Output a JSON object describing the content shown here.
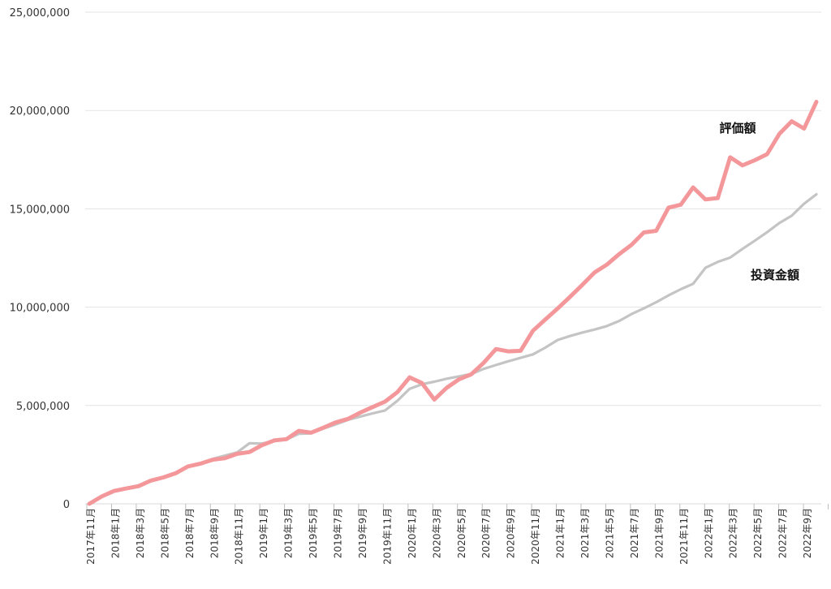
{
  "chart_data": {
    "type": "line",
    "title": "",
    "xlabel": "",
    "ylabel": "",
    "ylim": [
      0,
      25000000
    ],
    "yticks": [
      0,
      5000000,
      10000000,
      15000000,
      20000000,
      25000000
    ],
    "ytick_labels": [
      "0",
      "5,000,000",
      "10,000,000",
      "15,000,000",
      "20,000,000",
      "25,000,000"
    ],
    "grid": "horizontal",
    "legend": "none",
    "xtick_labels": [
      "2017年11月",
      "2018年1月",
      "2018年3月",
      "2018年5月",
      "2018年7月",
      "2018年9月",
      "2018年11月",
      "2019年1月",
      "2019年3月",
      "2019年5月",
      "2019年7月",
      "2019年9月",
      "2019年11月",
      "2020年1月",
      "2020年3月",
      "2020年5月",
      "2020年7月",
      "2020年9月",
      "2020年11月",
      "2021年1月",
      "2021年3月",
      "2021年5月",
      "2021年7月",
      "2021年9月",
      "2021年11月",
      "2022年1月",
      "2022年3月",
      "2022年5月",
      "2022年7月",
      "2022年9月"
    ],
    "x": [
      "2017年11月",
      "2017年12月",
      "2018年1月",
      "2018年2月",
      "2018年3月",
      "2018年4月",
      "2018年5月",
      "2018年6月",
      "2018年7月",
      "2018年8月",
      "2018年9月",
      "2018年10月",
      "2018年11月",
      "2018年12月",
      "2019年1月",
      "2019年2月",
      "2019年3月",
      "2019年4月",
      "2019年5月",
      "2019年6月",
      "2019年7月",
      "2019年8月",
      "2019年9月",
      "2019年10月",
      "2019年11月",
      "2019年12月",
      "2020年1月",
      "2020年2月",
      "2020年3月",
      "2020年4月",
      "2020年5月",
      "2020年6月",
      "2020年7月",
      "2020年8月",
      "2020年9月",
      "2020年10月",
      "2020年11月",
      "2020年12月",
      "2021年1月",
      "2021年2月",
      "2021年3月",
      "2021年4月",
      "2021年5月",
      "2021年6月",
      "2021年7月",
      "2021年8月",
      "2021年9月",
      "2021年10月",
      "2021年11月",
      "2021年12月",
      "2022年1月",
      "2022年2月",
      "2022年3月",
      "2022年4月",
      "2022年5月",
      "2022年6月",
      "2022年7月",
      "2022年8月",
      "2022年9月",
      "2022年10月"
    ],
    "series": [
      {
        "name": "評価額",
        "color": "#f4979a",
        "values": [
          0,
          370000,
          650000,
          780000,
          900000,
          1180000,
          1340000,
          1550000,
          1900000,
          2040000,
          2240000,
          2320000,
          2540000,
          2630000,
          2980000,
          3220000,
          3290000,
          3710000,
          3620000,
          3870000,
          4140000,
          4320000,
          4640000,
          4920000,
          5200000,
          5680000,
          6430000,
          6140000,
          5300000,
          5900000,
          6330000,
          6590000,
          7170000,
          7870000,
          7750000,
          7780000,
          8800000,
          9370000,
          9930000,
          10520000,
          11130000,
          11760000,
          12160000,
          12700000,
          13170000,
          13800000,
          13880000,
          15060000,
          15210000,
          16090000,
          15480000,
          15550000,
          17620000,
          17210000,
          17470000,
          17780000,
          18810000,
          19450000,
          19080000,
          20440000
        ]
      },
      {
        "name": "投資金額",
        "color": "#c4c4c4",
        "values": [
          0,
          360000,
          620000,
          780000,
          930000,
          1170000,
          1350000,
          1550000,
          1860000,
          2050000,
          2280000,
          2450000,
          2610000,
          3080000,
          3060000,
          3200000,
          3270000,
          3560000,
          3580000,
          3830000,
          4040000,
          4270000,
          4440000,
          4600000,
          4750000,
          5240000,
          5850000,
          6080000,
          6210000,
          6360000,
          6480000,
          6600000,
          6860000,
          7060000,
          7250000,
          7420000,
          7600000,
          7940000,
          8330000,
          8530000,
          8710000,
          8860000,
          9040000,
          9300000,
          9650000,
          9940000,
          10250000,
          10600000,
          10910000,
          11190000,
          12000000,
          12300000,
          12520000,
          12960000,
          13380000,
          13810000,
          14280000,
          14650000,
          15260000,
          15740000
        ]
      }
    ]
  }
}
